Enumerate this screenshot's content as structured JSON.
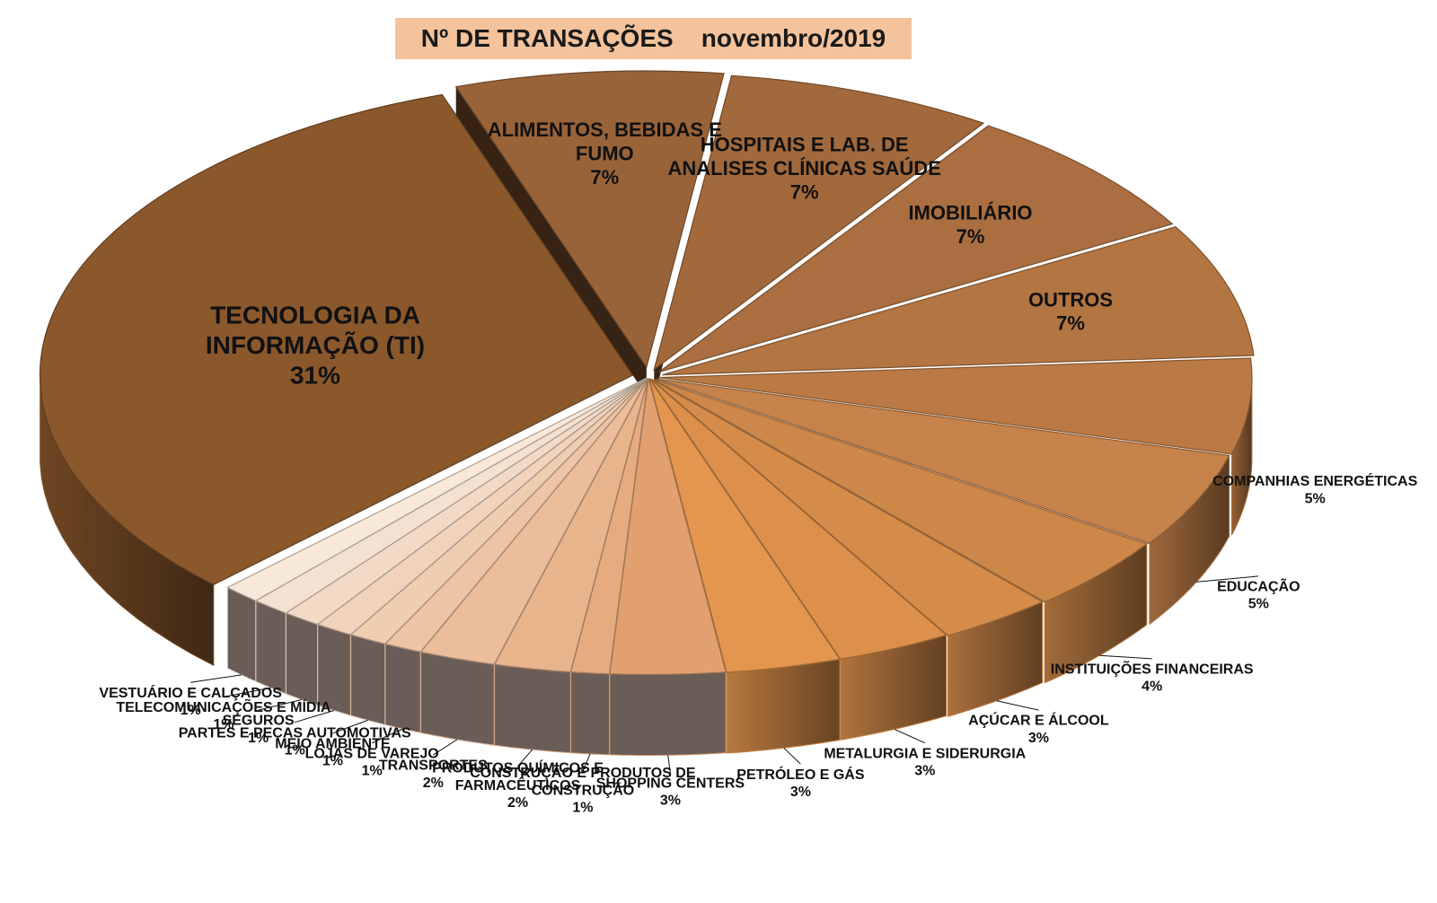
{
  "chart_data": {
    "type": "pie",
    "title": "Nº DE TRANSAÇÕES    novembro/2019",
    "slices": [
      {
        "label": "TECNOLOGIA DA INFORMAÇÃO (TI)",
        "lines": [
          "TECNOLOGIA DA",
          "INFORMAÇÃO (TI)"
        ],
        "value": 31,
        "pct": "31%",
        "color": "#8b582c"
      },
      {
        "label": "ALIMENTOS, BEBIDAS E FUMO",
        "lines": [
          "ALIMENTOS, BEBIDAS E",
          "FUMO"
        ],
        "value": 7,
        "pct": "7%",
        "color": "#99633a"
      },
      {
        "label": "HOSPITAIS E LAB. DE ANALISES CLÍNICAS SAÚDE",
        "lines": [
          "HOSPITAIS E LAB. DE",
          "ANALISES CLÍNICAS SAÚDE"
        ],
        "value": 7,
        "pct": "7%",
        "color": "#a2693c"
      },
      {
        "label": "IMOBILIÁRIO",
        "lines": [
          "IMOBILIÁRIO"
        ],
        "value": 7,
        "pct": "7%",
        "color": "#aa6e40"
      },
      {
        "label": "OUTROS",
        "lines": [
          "OUTROS"
        ],
        "value": 7,
        "pct": "7%",
        "color": "#b37542"
      },
      {
        "label": "COMPANHIAS ENERGÉTICAS",
        "lines": [
          "COMPANHIAS ENERGÉTICAS"
        ],
        "value": 5,
        "pct": "5%",
        "color": "#bb7a45"
      },
      {
        "label": "EDUCAÇÃO",
        "lines": [
          "EDUCAÇÃO"
        ],
        "value": 5,
        "pct": "5%",
        "color": "#c5824a"
      },
      {
        "label": "INSTITUIÇÕES FINANCEIRAS",
        "lines": [
          "INSTITUIÇÕES FINANCEIRAS"
        ],
        "value": 4,
        "pct": "4%",
        "color": "#cc8749"
      },
      {
        "label": "AÇÚCAR E ÁLCOOL",
        "lines": [
          "AÇÚCAR E ÁLCOOL"
        ],
        "value": 3,
        "pct": "3%",
        "color": "#d58c4b"
      },
      {
        "label": "METALURGIA E SIDERURGIA",
        "lines": [
          "METALURGIA E SIDERURGIA"
        ],
        "value": 3,
        "pct": "3%",
        "color": "#dc904c"
      },
      {
        "label": "PETRÓLEO E GÁS",
        "lines": [
          "PETRÓLEO E GÁS"
        ],
        "value": 3,
        "pct": "3%",
        "color": "#e4964f"
      },
      {
        "label": "SHOPPING CENTERS",
        "lines": [
          "SHOPPING CENTERS"
        ],
        "value": 3,
        "pct": "3%",
        "color": "#e2a070"
      },
      {
        "label": "CONSTRUÇÃO E PRODUTOS DE CONSTRUÇÃO",
        "lines": [
          "CONSTRUÇÃO E PRODUTOS DE",
          "CONSTRUÇÃO"
        ],
        "value": 1,
        "pct": "1%",
        "color": "#e6ac80"
      },
      {
        "label": "PRODUTOS QUÍMICOS E FARMACÊUTICOS",
        "lines": [
          "PRODUTOS QUÍMICOS E",
          "FARMACÊUTICOS"
        ],
        "value": 2,
        "pct": "2%",
        "color": "#e8b48c"
      },
      {
        "label": "TRANSPORTES",
        "lines": [
          "TRANSPORTES"
        ],
        "value": 2,
        "pct": "2%",
        "color": "#ebbd9a"
      },
      {
        "label": "LOJAS DE VAREJO",
        "lines": [
          "LOJAS DE VAREJO"
        ],
        "value": 1,
        "pct": "1%",
        "color": "#edc4a5"
      },
      {
        "label": "MEIO AMBIENTE",
        "lines": [
          "MEIO AMBIENTE"
        ],
        "value": 1,
        "pct": "1%",
        "color": "#efcdb1"
      },
      {
        "label": "PARTES E PEÇAS AUTOMOTIVAS",
        "lines": [
          "PARTES E PEÇAS AUTOMOTIVAS"
        ],
        "value": 1,
        "pct": "1%",
        "color": "#f1d3bc"
      },
      {
        "label": "SEGUROS",
        "lines": [
          "SEGUROS"
        ],
        "value": 1,
        "pct": "1%",
        "color": "#f3dac7"
      },
      {
        "label": "TELECOMUNICAÇÕES E MÍDIA",
        "lines": [
          "TELECOMUNICAÇÕES E MÍDIA"
        ],
        "value": 1,
        "pct": "1%",
        "color": "#f5e1d1"
      },
      {
        "label": "VESTUÁRIO E CALÇADOS",
        "lines": [
          "VESTUÁRIO E CALÇADOS"
        ],
        "value": 1,
        "pct": "1%",
        "color": "#f7e8dc"
      }
    ]
  }
}
